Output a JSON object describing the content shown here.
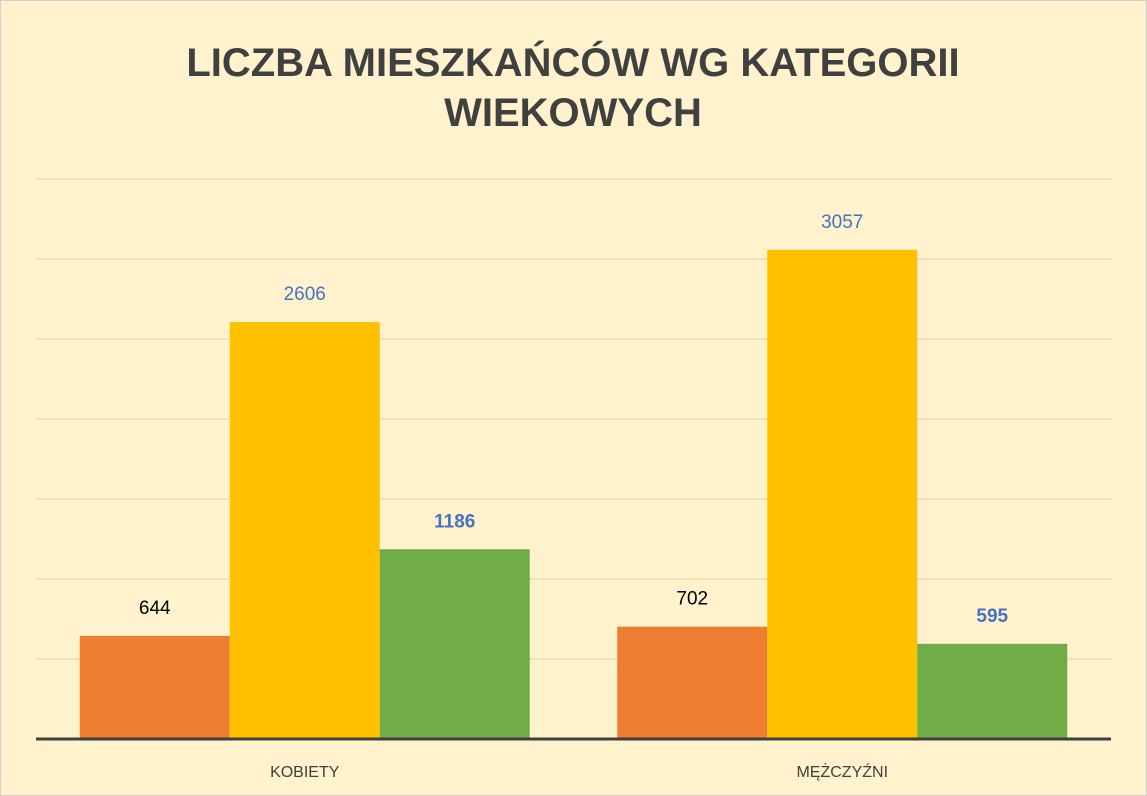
{
  "chart_data": {
    "type": "bar",
    "title": "LICZBA MIESZKAŃCÓW WG KATEGORII WIEKOWYCH",
    "categories": [
      "KOBIETY",
      "MĘŻCZYŹNI"
    ],
    "series": [
      {
        "color": "#ed7d31",
        "values": [
          644,
          702
        ]
      },
      {
        "color": "#ffc000",
        "values": [
          2606,
          3057
        ]
      },
      {
        "color": "#70ad47",
        "values": [
          1186,
          595
        ]
      }
    ],
    "ylim": [
      0,
      3500
    ],
    "yticks": [
      0,
      500,
      1000,
      1500,
      2000,
      2500,
      3000,
      3500
    ],
    "grid": true
  }
}
